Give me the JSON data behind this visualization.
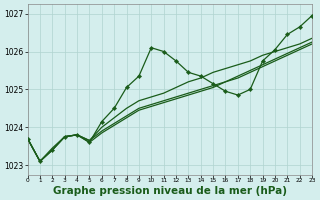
{
  "background_color": "#d4eeed",
  "grid_color": "#b0d4d0",
  "line_color": "#1a5c1a",
  "marker_color": "#1a5c1a",
  "xlabel": "Graphe pression niveau de la mer (hPa)",
  "xlabel_fontsize": 7.5,
  "xmin": 0,
  "xmax": 23,
  "ymin": 1022.75,
  "ymax": 1027.25,
  "yticks": [
    1023,
    1024,
    1025,
    1026,
    1027
  ],
  "xticks": [
    0,
    1,
    2,
    3,
    4,
    5,
    6,
    7,
    8,
    9,
    10,
    11,
    12,
    13,
    14,
    15,
    16,
    17,
    18,
    19,
    20,
    21,
    22,
    23
  ],
  "series": [
    {
      "x": [
        0,
        1,
        2,
        3,
        4,
        5,
        6,
        7,
        8,
        9,
        10,
        11,
        12,
        13,
        14,
        15,
        16,
        17,
        18,
        19,
        20,
        21,
        22,
        23
      ],
      "y": [
        1023.7,
        1023.1,
        1023.4,
        1023.75,
        1023.8,
        1023.6,
        1024.15,
        1024.5,
        1025.05,
        1025.35,
        1026.1,
        1026.0,
        1025.75,
        1025.45,
        1025.35,
        1025.15,
        1024.95,
        1024.85,
        1025.0,
        1025.75,
        1026.05,
        1026.45,
        1026.65,
        1026.95
      ],
      "marker": true
    },
    {
      "x": [
        0,
        1,
        2,
        3,
        4,
        5,
        6,
        7,
        8,
        9,
        10,
        11,
        12,
        13,
        14,
        15,
        16,
        17,
        18,
        19,
        20,
        21,
        22,
        23
      ],
      "y": [
        1023.7,
        1023.1,
        1023.4,
        1023.75,
        1023.8,
        1023.65,
        1024.0,
        1024.25,
        1024.5,
        1024.7,
        1024.8,
        1024.9,
        1025.05,
        1025.2,
        1025.3,
        1025.45,
        1025.55,
        1025.65,
        1025.75,
        1025.9,
        1026.0,
        1026.1,
        1026.2,
        1026.35
      ],
      "marker": false
    },
    {
      "x": [
        0,
        1,
        2,
        3,
        4,
        5,
        6,
        7,
        8,
        9,
        10,
        11,
        12,
        13,
        14,
        15,
        16,
        17,
        18,
        19,
        20,
        21,
        22,
        23
      ],
      "y": [
        1023.7,
        1023.1,
        1023.4,
        1023.75,
        1023.8,
        1023.65,
        1023.9,
        1024.1,
        1024.3,
        1024.5,
        1024.6,
        1024.7,
        1024.8,
        1024.9,
        1025.0,
        1025.1,
        1025.2,
        1025.3,
        1025.45,
        1025.6,
        1025.75,
        1025.9,
        1026.05,
        1026.2
      ],
      "marker": false
    },
    {
      "x": [
        0,
        1,
        2,
        3,
        4,
        5,
        6,
        7,
        8,
        9,
        10,
        11,
        12,
        13,
        14,
        15,
        16,
        17,
        18,
        19,
        20,
        21,
        22,
        23
      ],
      "y": [
        1023.7,
        1023.1,
        1023.45,
        1023.75,
        1023.8,
        1023.6,
        1023.85,
        1024.05,
        1024.25,
        1024.45,
        1024.55,
        1024.65,
        1024.75,
        1024.85,
        1024.95,
        1025.05,
        1025.2,
        1025.35,
        1025.5,
        1025.65,
        1025.8,
        1025.95,
        1026.1,
        1026.25
      ],
      "marker": false
    }
  ]
}
